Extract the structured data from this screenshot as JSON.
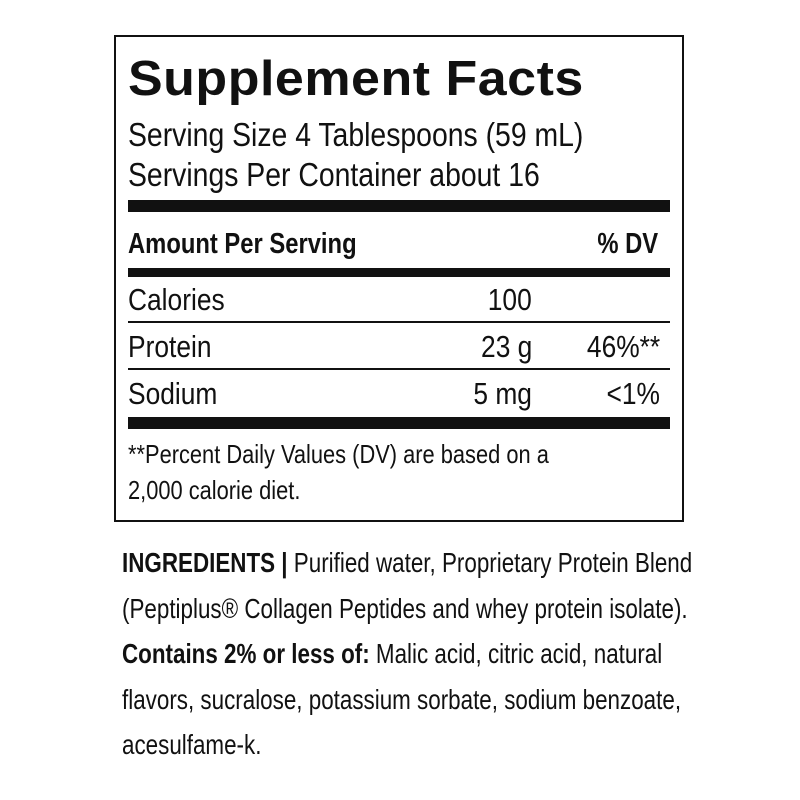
{
  "facts": {
    "title": "Supplement Facts",
    "serving_size": "Serving Size 4 Tablespoons (59 mL)",
    "servings_per_container": "Servings Per Container about 16",
    "header_amount": "Amount Per Serving",
    "header_dv": "% DV",
    "rows": [
      {
        "name": "Calories",
        "amount": "100",
        "dv": ""
      },
      {
        "name": "Protein",
        "amount": "23 g",
        "dv": "46%**"
      },
      {
        "name": "Sodium",
        "amount": "5 mg",
        "dv": "<1%"
      }
    ],
    "footnote_line1": "**Percent Daily Values (DV) are based on a",
    "footnote_line2": "2,000 calorie diet."
  },
  "ingredients": {
    "label": "INGREDIENTS |",
    "part1": " Purified water, Proprietary Protein Blend (Peptiplus® Collagen Peptides and whey protein isolate). ",
    "bold": "Contains 2% or less of:",
    "part2": " Malic acid, citric acid, natural flavors, sucralose, potassium sorbate, sodium benzoate, acesulfame-k."
  }
}
